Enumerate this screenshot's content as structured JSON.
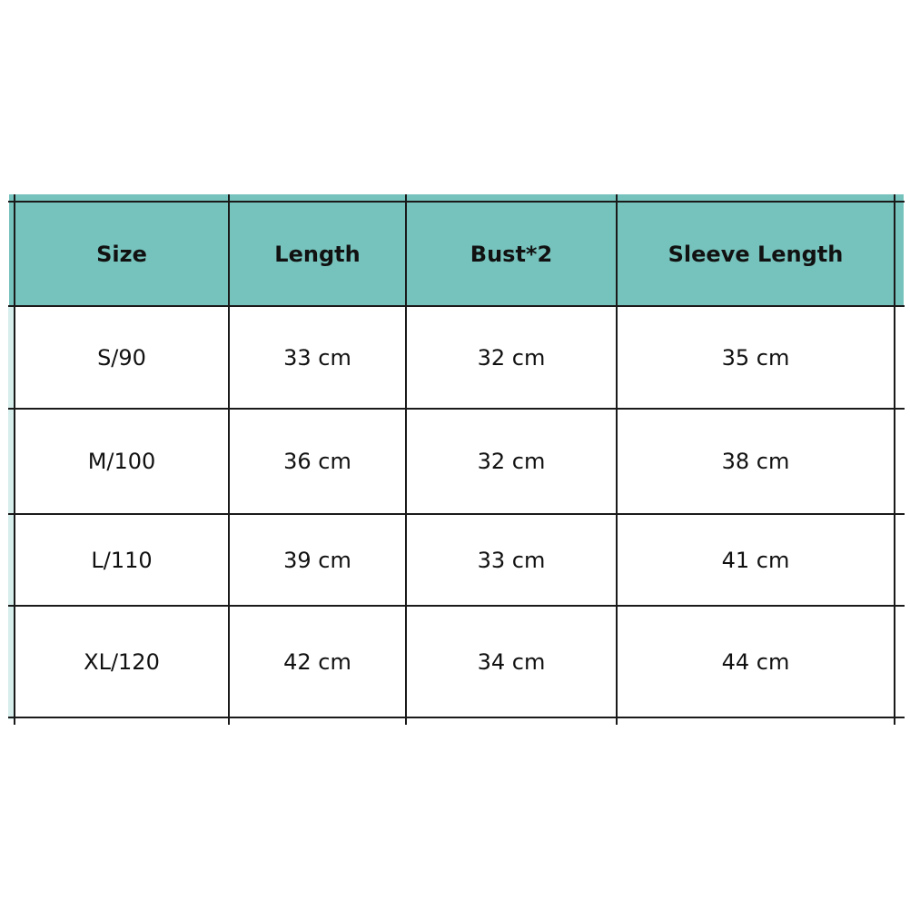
{
  "table": {
    "header_color": "#76c2bc",
    "headers": [
      "Size",
      "Length",
      "Bust*2",
      "Sleeve Length"
    ],
    "rows": [
      [
        "S/90",
        "33 cm",
        "32 cm",
        "35 cm"
      ],
      [
        "M/100",
        "36 cm",
        "32 cm",
        "38 cm"
      ],
      [
        "L/110",
        "39 cm",
        "33 cm",
        "41 cm"
      ],
      [
        "XL/120",
        "42 cm",
        "34 cm",
        "44 cm"
      ]
    ]
  }
}
